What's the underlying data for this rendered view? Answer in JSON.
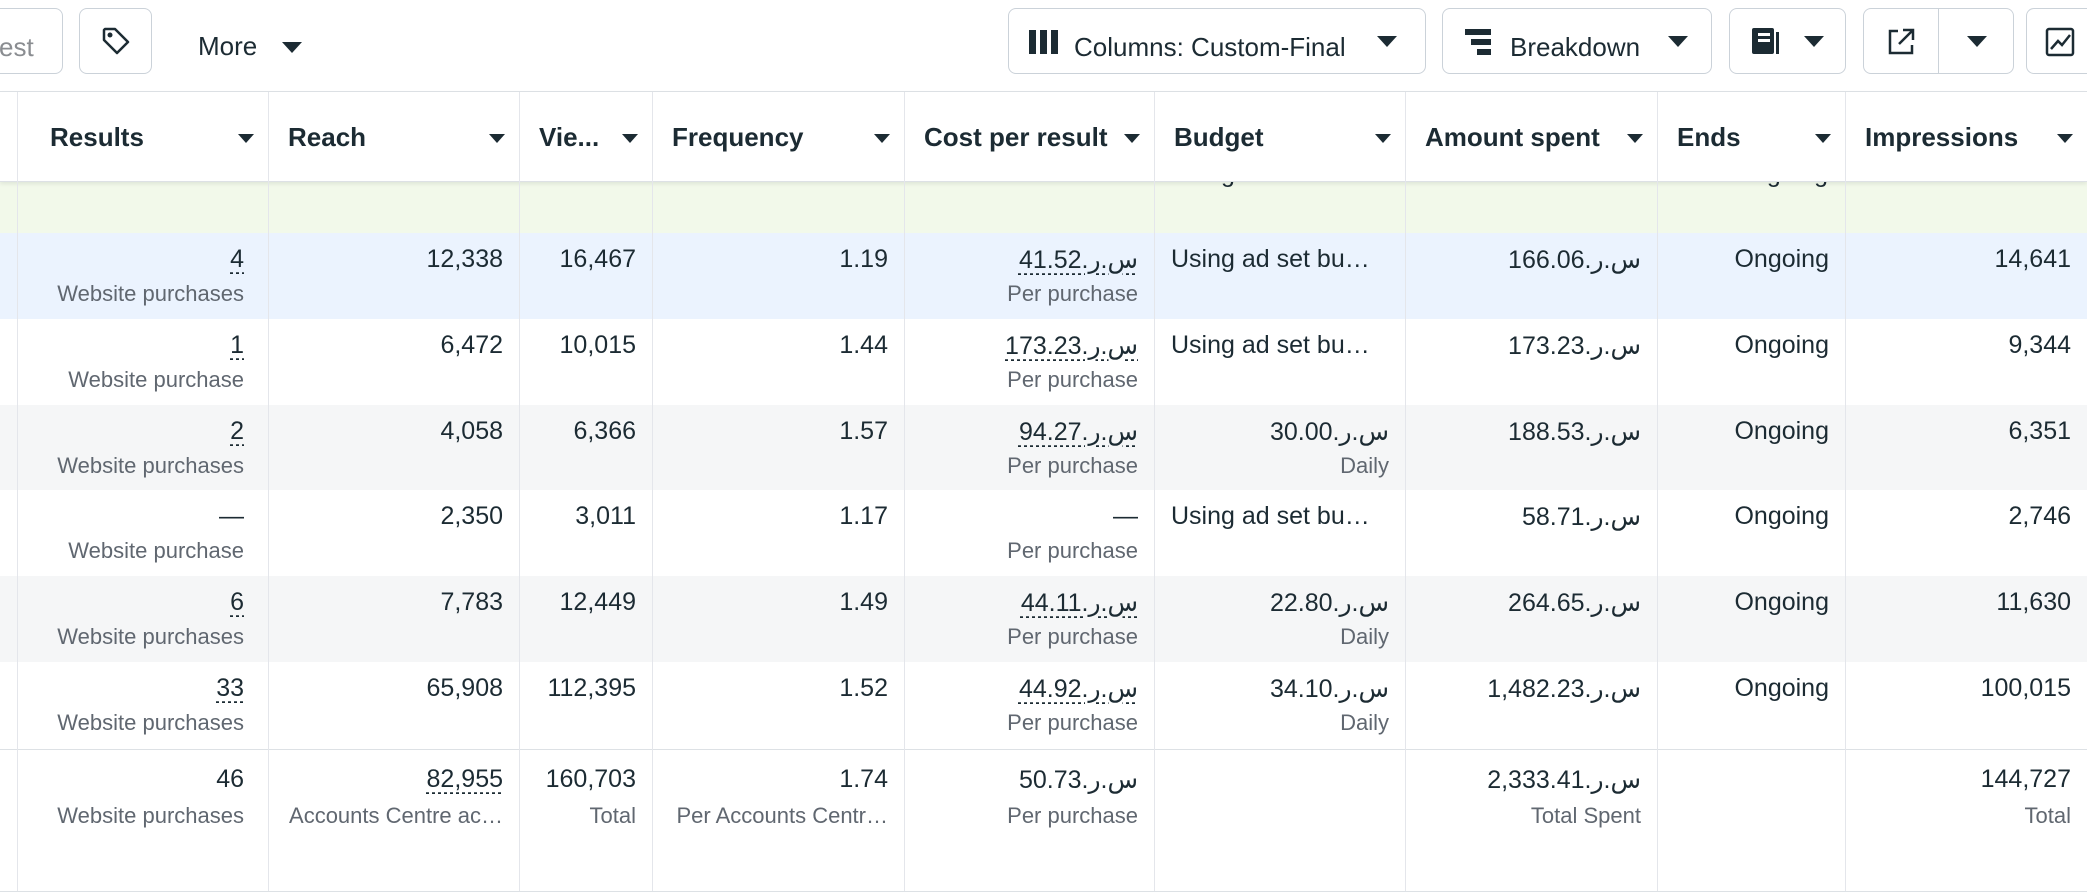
{
  "toolbar": {
    "search_placeholder": "est",
    "more": "More",
    "columns": "Columns: Custom-Final",
    "breakdown": "Breakdown"
  },
  "table": {
    "headers": [
      "Results",
      "Reach",
      "Vie...",
      "Frequency",
      "Cost per result",
      "Budget",
      "Amount spent",
      "Ends",
      "Impressions"
    ],
    "partial_row": {
      "budget": "Using ad set bu…",
      "ends": "Ongoing"
    },
    "rows": [
      {
        "cells": [
          {
            "main": "4",
            "sub": "Website purchases"
          },
          {
            "main": "12,338"
          },
          {
            "main": "16,467"
          },
          {
            "main": "1.19"
          },
          {
            "main": "41.52.ر.س",
            "sub": "Per purchase"
          },
          {
            "main": "Using ad set bu…"
          },
          {
            "main": "166.06.ر.س"
          },
          {
            "main": "Ongoing"
          },
          {
            "main": "14,641"
          }
        ]
      },
      {
        "cells": [
          {
            "main": "1",
            "sub": "Website purchase"
          },
          {
            "main": "6,472"
          },
          {
            "main": "10,015"
          },
          {
            "main": "1.44"
          },
          {
            "main": "173.23.ر.س",
            "sub": "Per purchase"
          },
          {
            "main": "Using ad set bu…"
          },
          {
            "main": "173.23.ر.س"
          },
          {
            "main": "Ongoing"
          },
          {
            "main": "9,344"
          }
        ]
      },
      {
        "cells": [
          {
            "main": "2",
            "sub": "Website purchases"
          },
          {
            "main": "4,058"
          },
          {
            "main": "6,366"
          },
          {
            "main": "1.57"
          },
          {
            "main": "94.27.ر.س",
            "sub": "Per purchase"
          },
          {
            "main": "30.00.ر.س",
            "sub": "Daily"
          },
          {
            "main": "188.53.ر.س"
          },
          {
            "main": "Ongoing"
          },
          {
            "main": "6,351"
          }
        ]
      },
      {
        "cells": [
          {
            "main": "—",
            "sub": "Website purchase"
          },
          {
            "main": "2,350"
          },
          {
            "main": "3,011"
          },
          {
            "main": "1.17"
          },
          {
            "main": "—",
            "sub": "Per purchase"
          },
          {
            "main": "Using ad set bu…"
          },
          {
            "main": "58.71.ر.س"
          },
          {
            "main": "Ongoing"
          },
          {
            "main": "2,746"
          }
        ]
      },
      {
        "cells": [
          {
            "main": "6",
            "sub": "Website purchases"
          },
          {
            "main": "7,783"
          },
          {
            "main": "12,449"
          },
          {
            "main": "1.49"
          },
          {
            "main": "44.11.ر.س",
            "sub": "Per purchase"
          },
          {
            "main": "22.80.ر.س",
            "sub": "Daily"
          },
          {
            "main": "264.65.ر.س"
          },
          {
            "main": "Ongoing"
          },
          {
            "main": "11,630"
          }
        ]
      },
      {
        "cells": [
          {
            "main": "33",
            "sub": "Website purchases"
          },
          {
            "main": "65,908"
          },
          {
            "main": "112,395"
          },
          {
            "main": "1.52"
          },
          {
            "main": "44.92.ر.س",
            "sub": "Per purchase"
          },
          {
            "main": "34.10.ر.س",
            "sub": "Daily"
          },
          {
            "main": "1,482.23.ر.س"
          },
          {
            "main": "Ongoing"
          },
          {
            "main": "100,015"
          }
        ]
      }
    ],
    "total": {
      "cells": [
        {
          "main": "46",
          "sub": "Website purchases"
        },
        {
          "main": "82,955",
          "sub": "Accounts Centre ac…"
        },
        {
          "main": "160,703",
          "sub": "Total"
        },
        {
          "main": "1.74",
          "sub": "Per Accounts Centr…"
        },
        {
          "main": "50.73.ر.س",
          "sub": "Per purchase"
        },
        null,
        {
          "main": "2,333.41.ر.س",
          "sub": "Total Spent"
        },
        null,
        {
          "main": "144,727",
          "sub": "Total"
        }
      ]
    }
  }
}
